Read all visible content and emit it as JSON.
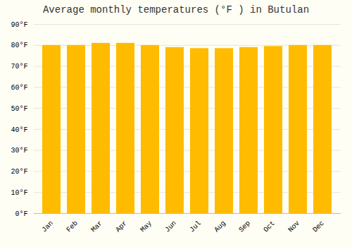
{
  "chart_data": {
    "type": "bar",
    "title": "Average monthly temperatures (°F ) in Butulan",
    "categories": [
      "Jan",
      "Feb",
      "Mar",
      "Apr",
      "May",
      "Jun",
      "Jul",
      "Aug",
      "Sep",
      "Oct",
      "Nov",
      "Dec"
    ],
    "values": [
      80,
      80,
      81,
      81,
      80,
      79,
      78.5,
      78.5,
      79,
      79.5,
      80,
      80
    ],
    "color": "#FFBB00",
    "ylim": [
      0,
      90
    ],
    "yticks": [
      {
        "value": 0,
        "label": "0°F"
      },
      {
        "value": 10,
        "label": "10°F"
      },
      {
        "value": 20,
        "label": "20°F"
      },
      {
        "value": 30,
        "label": "30°F"
      },
      {
        "value": 40,
        "label": "40°F"
      },
      {
        "value": 50,
        "label": "50°F"
      },
      {
        "value": 60,
        "label": "60°F"
      },
      {
        "value": 70,
        "label": "70°F"
      },
      {
        "value": 80,
        "label": "80°F"
      },
      {
        "value": 90,
        "label": "90°F"
      }
    ],
    "grid": true
  }
}
